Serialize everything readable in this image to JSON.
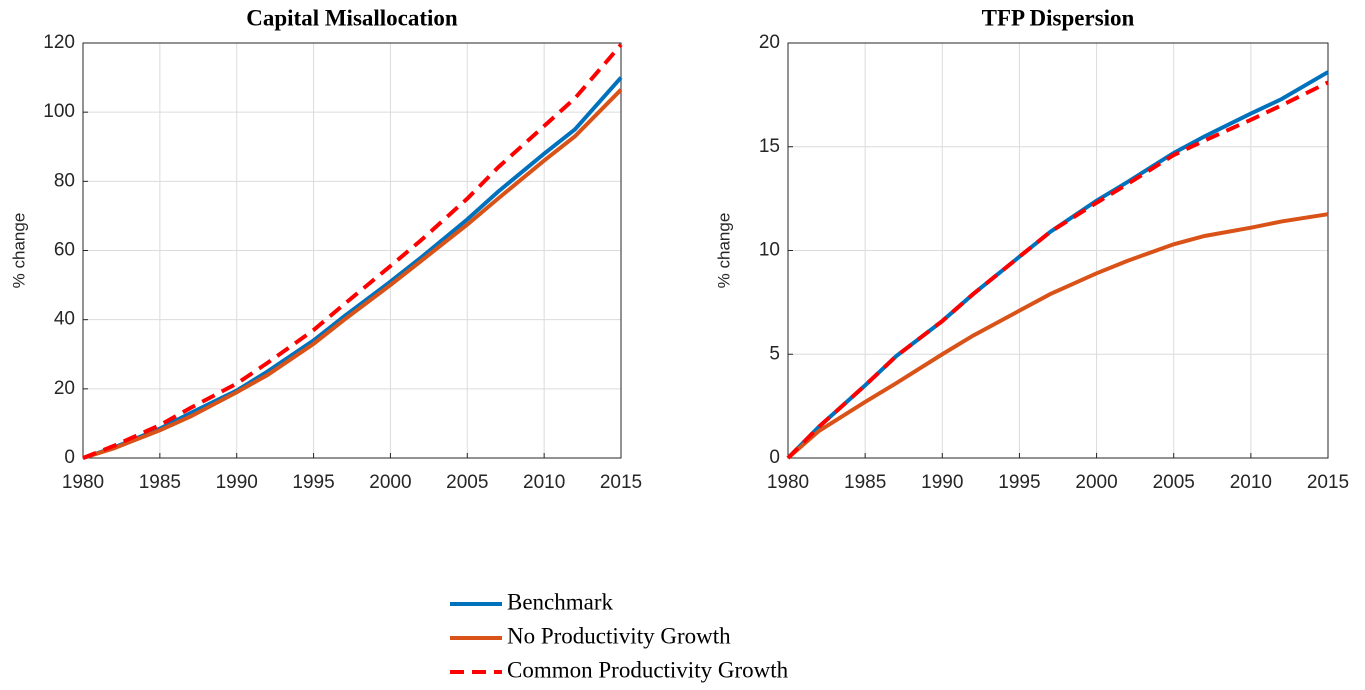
{
  "chart_data": [
    {
      "type": "line",
      "title": "Capital Misallocation",
      "ylabel": "% change",
      "x": [
        1980,
        1982,
        1985,
        1987,
        1990,
        1992,
        1995,
        1997,
        2000,
        2002,
        2005,
        2007,
        2010,
        2012,
        2015
      ],
      "series": [
        {
          "name": "Benchmark",
          "color": "#0072bd",
          "style": "solid",
          "values": [
            0,
            3,
            8.5,
            13,
            19.5,
            25,
            34,
            41,
            51,
            58,
            69,
            77,
            88,
            95,
            110
          ]
        },
        {
          "name": "No Productivity Growth",
          "color": "#d95319",
          "style": "solid",
          "values": [
            0,
            2.8,
            8,
            12,
            19,
            24,
            33,
            40,
            50,
            57,
            67.5,
            75,
            86,
            93,
            106.5
          ]
        },
        {
          "name": "Common Productivity Growth",
          "color": "#ff0000",
          "style": "dashed",
          "values": [
            0,
            3.5,
            9.5,
            14.5,
            21.5,
            27.5,
            37,
            44.5,
            55.5,
            63,
            75,
            84,
            96,
            104,
            119.5
          ]
        }
      ],
      "xlim": [
        1980,
        2015
      ],
      "ylim": [
        0,
        120
      ],
      "xticks": [
        1980,
        1985,
        1990,
        1995,
        2000,
        2005,
        2010,
        2015
      ],
      "yticks": [
        0,
        20,
        40,
        60,
        80,
        100,
        120
      ],
      "grid": true,
      "legend": "bottom"
    },
    {
      "type": "line",
      "title": "TFP Dispersion",
      "ylabel": "% change",
      "x": [
        1980,
        1982,
        1985,
        1987,
        1990,
        1992,
        1995,
        1997,
        2000,
        2002,
        2005,
        2007,
        2010,
        2012,
        2015
      ],
      "series": [
        {
          "color": "#0072bd",
          "style": "solid",
          "values": [
            0,
            1.5,
            3.5,
            4.9,
            6.6,
            7.9,
            9.7,
            10.9,
            12.4,
            13.3,
            14.7,
            15.5,
            16.6,
            17.3,
            18.6
          ]
        },
        {
          "color": "#d95319",
          "style": "solid",
          "values": [
            0,
            1.3,
            2.7,
            3.6,
            5,
            5.9,
            7.1,
            7.9,
            8.9,
            9.5,
            10.3,
            10.7,
            11.1,
            11.4,
            11.75
          ]
        },
        {
          "color": "#ff0000",
          "style": "dashed",
          "values": [
            0,
            1.5,
            3.5,
            4.9,
            6.6,
            7.9,
            9.7,
            10.9,
            12.3,
            13.2,
            14.6,
            15.3,
            16.3,
            17,
            18.1
          ]
        }
      ],
      "xlim": [
        1980,
        2015
      ],
      "ylim": [
        0,
        20
      ],
      "xticks": [
        1980,
        1985,
        1990,
        1995,
        2000,
        2005,
        2010,
        2015
      ],
      "yticks": [
        0,
        5,
        10,
        15,
        20
      ],
      "grid": true
    }
  ]
}
